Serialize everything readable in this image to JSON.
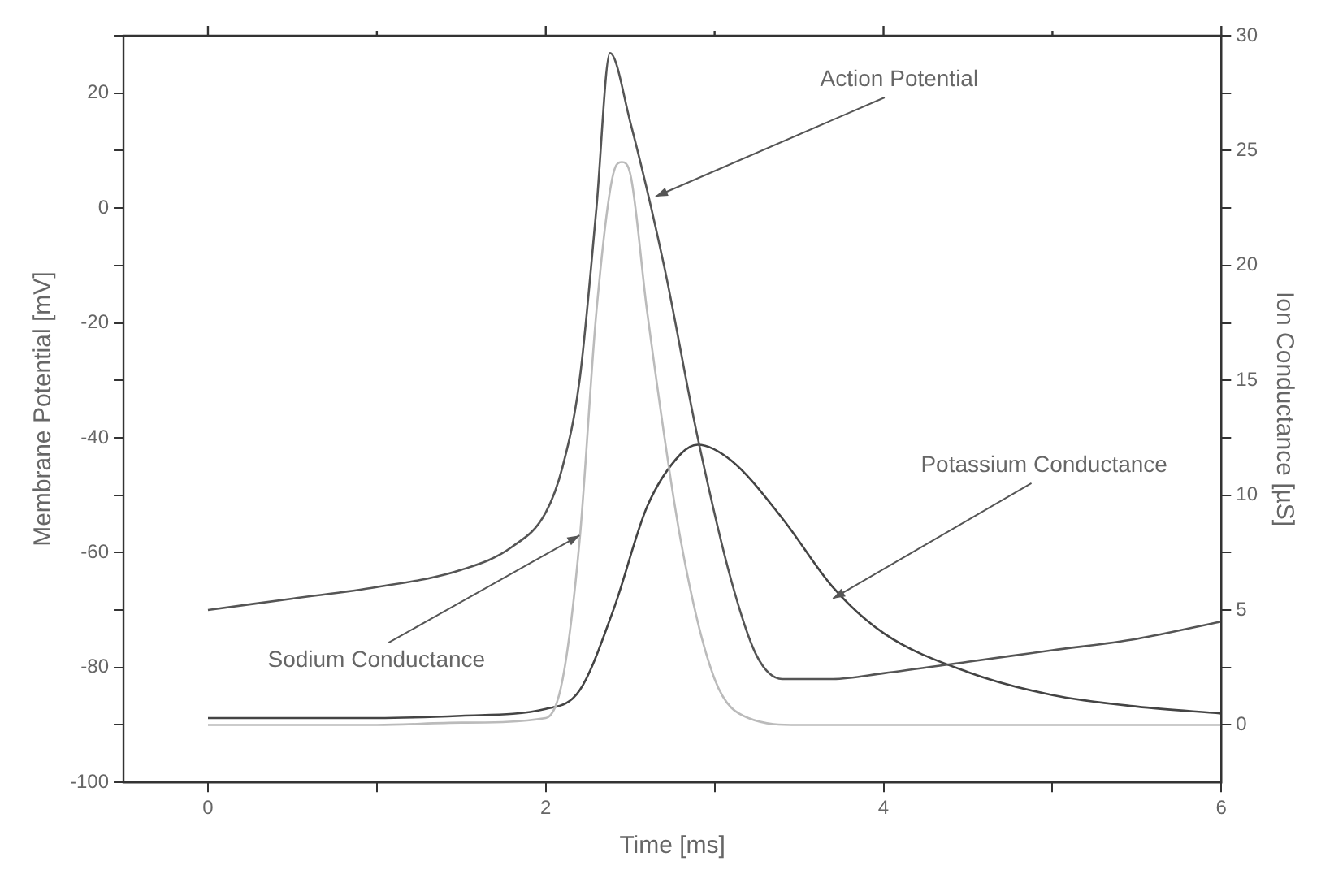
{
  "chart_data": {
    "type": "line",
    "xlabel": "Time [ms]",
    "ylabel": "Membrane Potential [mV]",
    "y2label": "Ion Conductance [µS]",
    "xlim": [
      -0.5,
      6
    ],
    "xticks": [
      0,
      {
        "value": 1,
        "label": null
      },
      2,
      {
        "value": 3,
        "label": null
      },
      4,
      {
        "value": 5,
        "label": null
      },
      6
    ],
    "ylim": [
      -100,
      30
    ],
    "yticks": [
      -100,
      {
        "value": -90,
        "label": null
      },
      -80,
      {
        "value": -70,
        "label": null
      },
      -60,
      {
        "value": -50,
        "label": null
      },
      -40,
      {
        "value": -30,
        "label": null
      },
      -20,
      {
        "value": -10,
        "label": null
      },
      0,
      {
        "value": 10,
        "label": null
      },
      20,
      {
        "value": 30,
        "label": null
      }
    ],
    "y2lim": [
      -2.5,
      30
    ],
    "y2ticks": [
      0,
      {
        "value": 2.5,
        "label": null
      },
      5,
      {
        "value": 7.5,
        "label": null
      },
      10,
      {
        "value": 12.5,
        "label": null
      },
      15,
      {
        "value": 17.5,
        "label": null
      },
      20,
      {
        "value": 22.5,
        "label": null
      },
      25,
      {
        "value": 27.5,
        "label": null
      },
      30
    ],
    "grid": false,
    "legend": false,
    "marker": "none",
    "series": [
      {
        "color": "#555555",
        "x": [
          0,
          0.5,
          1,
          1.5,
          1.8,
          2,
          2.1,
          2.2,
          2.3,
          2.38,
          2.5,
          2.7,
          2.9,
          3.1,
          3.25,
          3.4,
          3.7,
          4,
          4.5,
          5,
          5.5,
          6
        ],
        "values": [
          -70,
          -68,
          -66,
          -63,
          -59,
          -53,
          -45,
          -30,
          0,
          27,
          15,
          -10,
          -40,
          -65,
          -78,
          -82,
          -82,
          -81,
          -79,
          -77,
          -75,
          -72
        ]
      },
      {
        "color": "#bbbbbb",
        "axis": "y2",
        "x": [
          0,
          1,
          1.5,
          2,
          2.1,
          2.2,
          2.3,
          2.4,
          2.45,
          2.5,
          2.6,
          2.8,
          3,
          3.2,
          3.5,
          4,
          5,
          6
        ],
        "values": [
          0,
          0,
          0.1,
          0.3,
          2,
          8,
          18,
          24,
          24.5,
          24,
          18,
          8,
          2,
          0.3,
          0,
          0,
          0,
          0
        ]
      },
      {
        "color": "#444444",
        "axis": "y2",
        "x": [
          0,
          1,
          1.5,
          2,
          2.2,
          2.4,
          2.6,
          2.8,
          2.9,
          3.1,
          3.4,
          3.7,
          4,
          4.5,
          5,
          5.5,
          6
        ],
        "values": [
          0.3,
          0.3,
          0.4,
          0.7,
          1.5,
          5,
          9.5,
          11.8,
          12.2,
          11.5,
          9,
          6,
          4,
          2.3,
          1.3,
          0.8,
          0.5
        ]
      }
    ],
    "annotations": [
      {
        "text": "Action Potential",
        "x": 2.65,
        "y": 2
      },
      {
        "text": "Potassium Conductance",
        "x": 3.7,
        "y": -68
      },
      {
        "text": "Sodium Conductance",
        "x": 2.2,
        "y": -57
      }
    ]
  }
}
